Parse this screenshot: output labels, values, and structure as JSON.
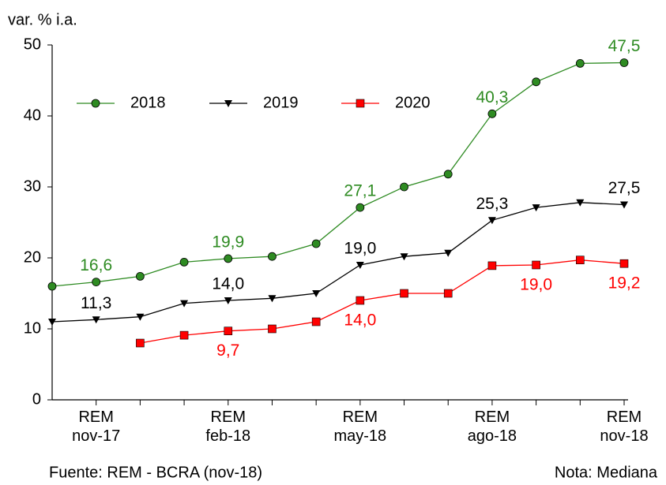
{
  "chart_data": {
    "type": "line",
    "y_label": "var. % i.a.",
    "source": "Fuente: REM - BCRA (nov-18)",
    "note": "Nota: Mediana",
    "categories": [
      null,
      "REM nov-17",
      null,
      null,
      "REM feb-18",
      null,
      null,
      "REM may-18",
      null,
      null,
      "REM ago-18",
      null,
      null,
      "REM nov-18"
    ],
    "ylim": [
      0,
      50
    ],
    "yticks": [
      0,
      10,
      20,
      30,
      40,
      50
    ],
    "legend": "upper left",
    "series": [
      {
        "name": "2018",
        "color": "#2e8b22",
        "marker": "circle",
        "label_position": "above",
        "values": [
          16.0,
          16.6,
          17.4,
          19.4,
          19.9,
          20.2,
          22.0,
          27.1,
          30.0,
          31.8,
          40.3,
          44.8,
          47.4,
          47.5
        ],
        "value_labels": [
          null,
          "16,6",
          null,
          null,
          "19,9",
          null,
          null,
          "27,1",
          null,
          null,
          "40,3",
          null,
          null,
          "47,5"
        ]
      },
      {
        "name": "2019",
        "color": "#000000",
        "marker": "triangle-down",
        "label_position": "above",
        "values": [
          11.0,
          11.3,
          11.7,
          13.6,
          14.0,
          14.3,
          15.0,
          19.0,
          20.2,
          20.7,
          25.3,
          27.1,
          27.8,
          27.5
        ],
        "value_labels": [
          null,
          "11,3",
          null,
          null,
          "14,0",
          null,
          null,
          "19,0",
          null,
          null,
          "25,3",
          null,
          null,
          "27,5"
        ]
      },
      {
        "name": "2020",
        "color": "#ff0000",
        "marker": "square",
        "label_position": "below",
        "values": [
          null,
          null,
          8.0,
          9.1,
          9.7,
          10.0,
          11.0,
          14.0,
          15.0,
          15.0,
          18.9,
          19.0,
          19.7,
          19.2
        ],
        "value_labels": [
          null,
          null,
          null,
          null,
          "9,7",
          null,
          null,
          "14,0",
          null,
          null,
          null,
          "19,0",
          null,
          "19,2"
        ]
      }
    ]
  }
}
